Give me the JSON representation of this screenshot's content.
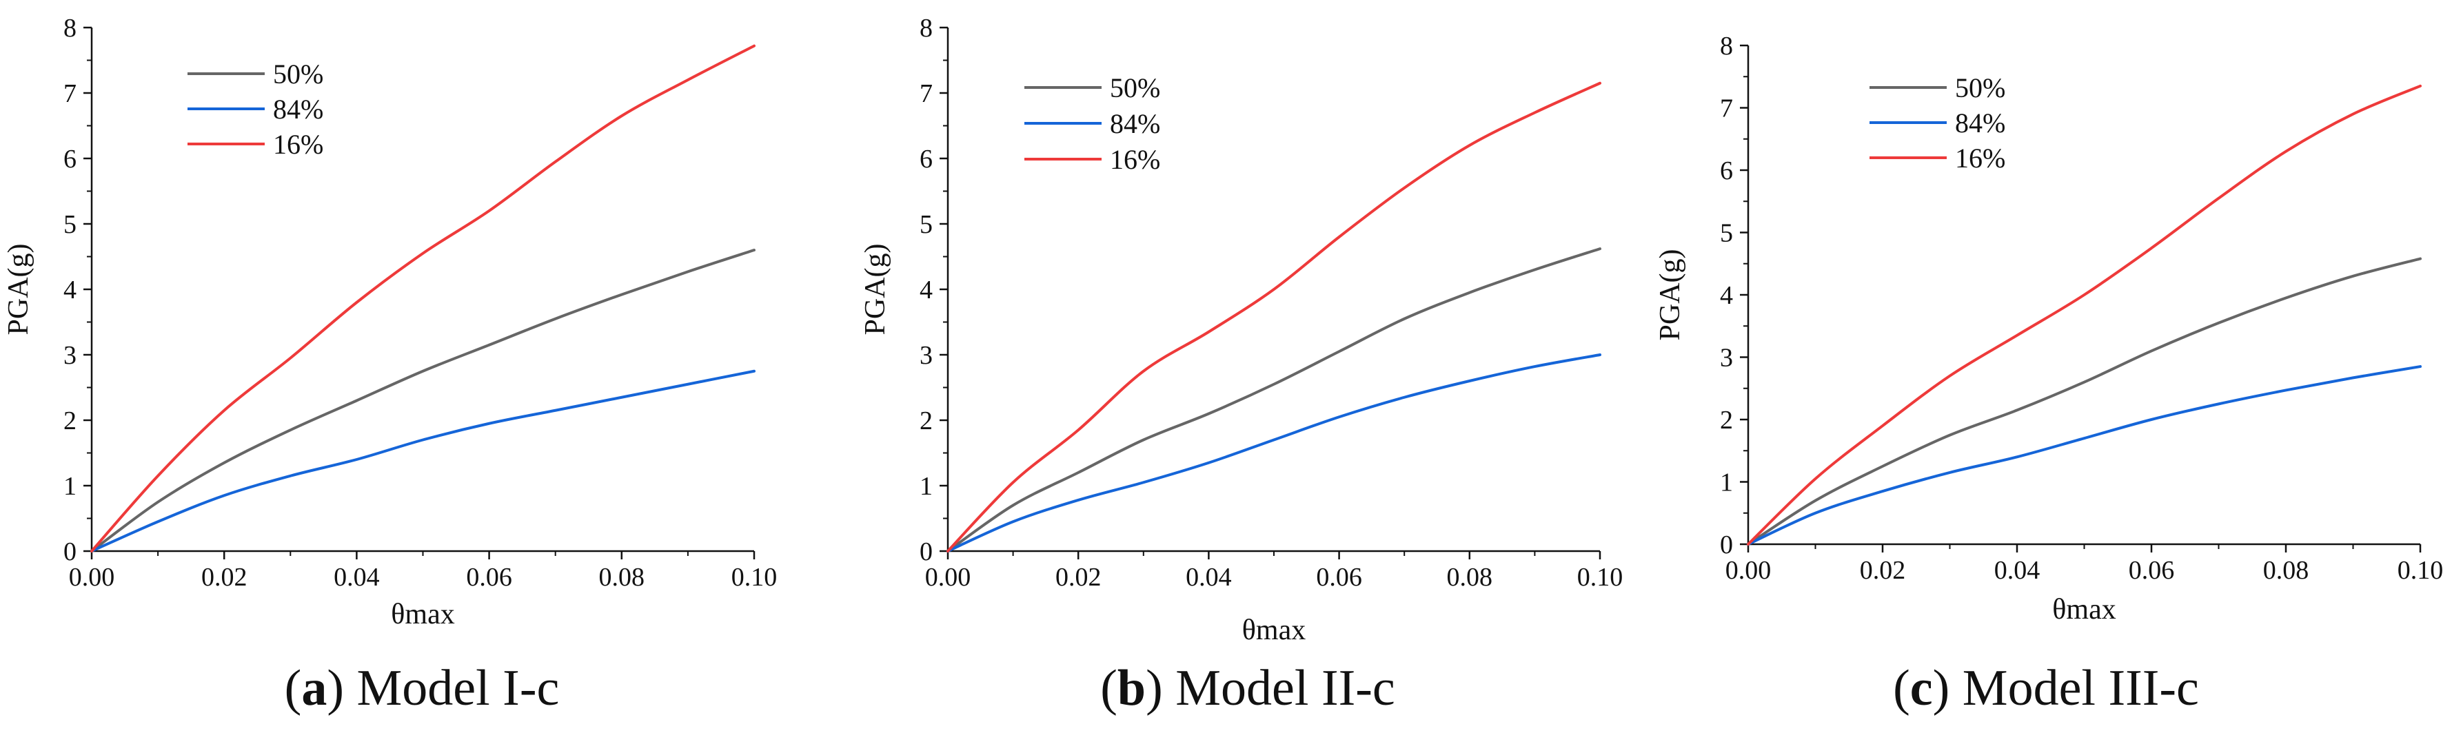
{
  "chart_data": [
    {
      "type": "line",
      "panel_letter": "a",
      "title": "Model I-c",
      "xlabel": "θmax",
      "ylabel": "PGA(g)",
      "xlim": [
        0,
        0.1
      ],
      "ylim": [
        0,
        8
      ],
      "xticks": [
        "0.00",
        "0.02",
        "0.04",
        "0.06",
        "0.08",
        "0.10"
      ],
      "yticks": [
        "0",
        "1",
        "2",
        "3",
        "4",
        "5",
        "6",
        "7",
        "8"
      ],
      "legend_position": "top-left",
      "x": [
        0,
        0.01,
        0.02,
        0.03,
        0.04,
        0.05,
        0.06,
        0.07,
        0.08,
        0.09,
        0.1
      ],
      "series": [
        {
          "name": "50%",
          "color": "#666666",
          "values": [
            0,
            0.75,
            1.35,
            1.85,
            2.3,
            2.75,
            3.15,
            3.55,
            3.92,
            4.27,
            4.6
          ]
        },
        {
          "name": "84%",
          "color": "#1565d8",
          "values": [
            0,
            0.45,
            0.85,
            1.15,
            1.4,
            1.7,
            1.95,
            2.15,
            2.35,
            2.55,
            2.75
          ]
        },
        {
          "name": "16%",
          "color": "#ee3a3a",
          "values": [
            0,
            1.15,
            2.15,
            2.95,
            3.8,
            4.55,
            5.2,
            5.95,
            6.65,
            7.2,
            7.72
          ]
        }
      ]
    },
    {
      "type": "line",
      "panel_letter": "b",
      "title": "Model II-c",
      "xlabel": "θmax",
      "ylabel": "PGA(g)",
      "xlim": [
        0,
        0.1
      ],
      "ylim": [
        0,
        8
      ],
      "xticks": [
        "0.00",
        "0.02",
        "0.04",
        "0.06",
        "0.08",
        "0.10"
      ],
      "yticks": [
        "0",
        "1",
        "2",
        "3",
        "4",
        "5",
        "6",
        "7",
        "8"
      ],
      "legend_position": "top-left",
      "x": [
        0,
        0.01,
        0.02,
        0.03,
        0.04,
        0.05,
        0.06,
        0.07,
        0.08,
        0.09,
        0.1
      ],
      "series": [
        {
          "name": "50%",
          "color": "#666666",
          "values": [
            0,
            0.7,
            1.2,
            1.7,
            2.1,
            2.55,
            3.05,
            3.55,
            3.95,
            4.3,
            4.62
          ]
        },
        {
          "name": "84%",
          "color": "#1565d8",
          "values": [
            0,
            0.45,
            0.78,
            1.05,
            1.35,
            1.7,
            2.05,
            2.35,
            2.6,
            2.82,
            3.0
          ]
        },
        {
          "name": "16%",
          "color": "#ee3a3a",
          "values": [
            0,
            1.05,
            1.85,
            2.75,
            3.35,
            4.0,
            4.8,
            5.55,
            6.2,
            6.7,
            7.15
          ]
        }
      ]
    },
    {
      "type": "line",
      "panel_letter": "c",
      "title": "Model III-c",
      "xlabel": "θmax",
      "ylabel": "PGA(g)",
      "xlim": [
        0,
        0.1
      ],
      "ylim": [
        0,
        8
      ],
      "xticks": [
        "0.00",
        "0.02",
        "0.04",
        "0.06",
        "0.08",
        "0.10"
      ],
      "yticks": [
        "0",
        "1",
        "2",
        "3",
        "4",
        "5",
        "6",
        "7",
        "8"
      ],
      "legend_position": "top-left",
      "x": [
        0,
        0.01,
        0.02,
        0.03,
        0.04,
        0.05,
        0.06,
        0.07,
        0.08,
        0.09,
        0.1
      ],
      "series": [
        {
          "name": "50%",
          "color": "#666666",
          "values": [
            0,
            0.7,
            1.25,
            1.75,
            2.15,
            2.6,
            3.1,
            3.55,
            3.95,
            4.3,
            4.58
          ]
        },
        {
          "name": "84%",
          "color": "#1565d8",
          "values": [
            0,
            0.5,
            0.85,
            1.15,
            1.4,
            1.7,
            2.0,
            2.25,
            2.47,
            2.67,
            2.85
          ]
        },
        {
          "name": "16%",
          "color": "#ee3a3a",
          "values": [
            0,
            1.05,
            1.9,
            2.7,
            3.35,
            4.0,
            4.75,
            5.55,
            6.3,
            6.9,
            7.35
          ]
        }
      ]
    }
  ]
}
